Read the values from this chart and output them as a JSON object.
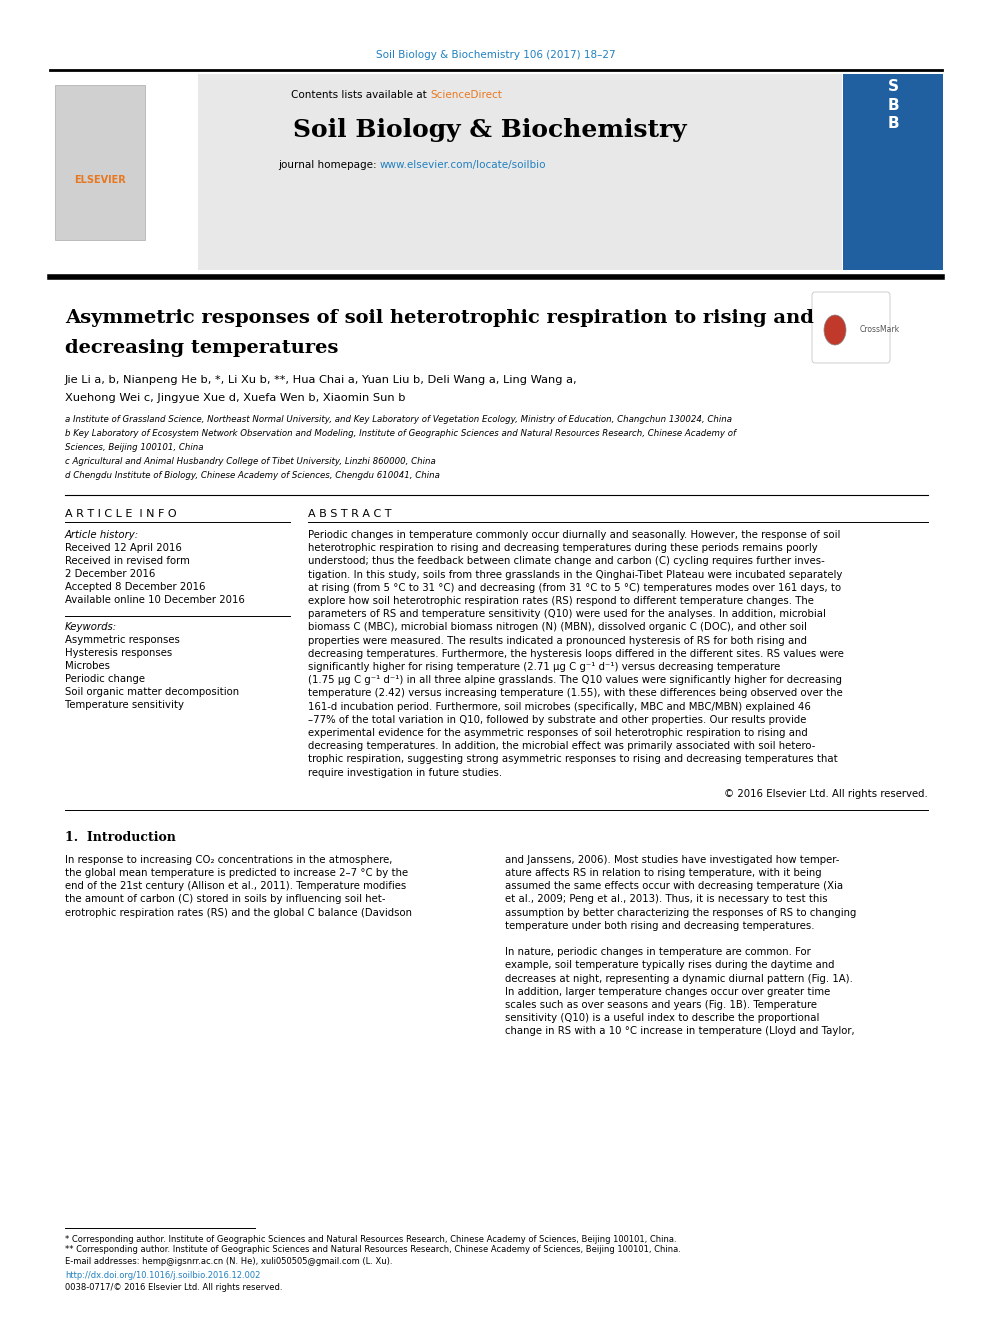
{
  "page_bg": "#ffffff",
  "top_journal_ref": "Soil Biology & Biochemistry 106 (2017) 18–27",
  "top_journal_ref_color": "#2080c0",
  "header_bg": "#e8e8e8",
  "header_text_contents": "Contents lists available at ",
  "header_sciencedirect": "ScienceDirect",
  "header_sciencedirect_color": "#e87820",
  "journal_title": "Soil Biology & Biochemistry",
  "journal_homepage_text": "journal homepage: ",
  "journal_homepage_url": "www.elsevier.com/locate/soilbio",
  "journal_homepage_url_color": "#2080c0",
  "article_title_line1": "Asymmetric responses of soil heterotrophic respiration to rising and",
  "article_title_line2": "decreasing temperatures",
  "authors_line1": "Jie Li a, b, Nianpeng He b, *, Li Xu b, **, Hua Chai a, Yuan Liu b, Deli Wang a, Ling Wang a,",
  "authors_line2": "Xuehong Wei c, Jingyue Xue d, Xuefa Wen b, Xiaomin Sun b",
  "affil_a": "a Institute of Grassland Science, Northeast Normal University, and Key Laboratory of Vegetation Ecology, Ministry of Education, Changchun 130024, China",
  "affil_b_line1": "b Key Laboratory of Ecosystem Network Observation and Modeling, Institute of Geographic Sciences and Natural Resources Research, Chinese Academy of",
  "affil_b_line2": "Sciences, Beijing 100101, China",
  "affil_c": "c Agricultural and Animal Husbandry College of Tibet University, Linzhi 860000, China",
  "affil_d": "d Chengdu Institute of Biology, Chinese Academy of Sciences, Chengdu 610041, China",
  "article_info_title": "A R T I C L E  I N F O",
  "abstract_title": "A B S T R A C T",
  "article_history_label": "Article history:",
  "received_1": "Received 12 April 2016",
  "received_revised": "Received in revised form",
  "received_revised_date": "2 December 2016",
  "accepted": "Accepted 8 December 2016",
  "available_online": "Available online 10 December 2016",
  "keywords_label": "Keywords:",
  "keyword_1": "Asymmetric responses",
  "keyword_2": "Hysteresis responses",
  "keyword_3": "Microbes",
  "keyword_4": "Periodic change",
  "keyword_5": "Soil organic matter decomposition",
  "keyword_6": "Temperature sensitivity",
  "copyright_text": "© 2016 Elsevier Ltd. All rights reserved.",
  "intro_title": "1.  Introduction",
  "footnote_star": "* Corresponding author. Institute of Geographic Sciences and Natural Resources Research, Chinese Academy of Sciences, Beijing 100101, China.",
  "footnote_starstar": "** Corresponding author. Institute of Geographic Sciences and Natural Resources Research, Chinese Academy of Sciences, Beijing 100101, China.",
  "footnote_email": "E-mail addresses: hemp@igsnrr.ac.cn (N. He), xuli050505@gmail.com (L. Xu).",
  "doi_text": "http://dx.doi.org/10.1016/j.soilbio.2016.12.002",
  "issn_text": "0038-0717/© 2016 Elsevier Ltd. All rights reserved.",
  "abstract_lines": [
    "Periodic changes in temperature commonly occur diurnally and seasonally. However, the response of soil",
    "heterotrophic respiration to rising and decreasing temperatures during these periods remains poorly",
    "understood; thus the feedback between climate change and carbon (C) cycling requires further inves-",
    "tigation. In this study, soils from three grasslands in the Qinghai-Tibet Plateau were incubated separately",
    "at rising (from 5 °C to 31 °C) and decreasing (from 31 °C to 5 °C) temperatures modes over 161 days, to",
    "explore how soil heterotrophic respiration rates (RS) respond to different temperature changes. The",
    "parameters of RS and temperature sensitivity (Q10) were used for the analyses. In addition, microbial",
    "biomass C (MBC), microbial biomass nitrogen (N) (MBN), dissolved organic C (DOC), and other soil",
    "properties were measured. The results indicated a pronounced hysteresis of RS for both rising and",
    "decreasing temperatures. Furthermore, the hysteresis loops differed in the different sites. RS values were",
    "significantly higher for rising temperature (2.71 μg C g⁻¹ d⁻¹) versus decreasing temperature",
    "(1.75 μg C g⁻¹ d⁻¹) in all three alpine grasslands. The Q10 values were significantly higher for decreasing",
    "temperature (2.42) versus increasing temperature (1.55), with these differences being observed over the",
    "161-d incubation period. Furthermore, soil microbes (specifically, MBC and MBC/MBN) explained 46",
    "–77% of the total variation in Q10, followed by substrate and other properties. Our results provide",
    "experimental evidence for the asymmetric responses of soil heterotrophic respiration to rising and",
    "decreasing temperatures. In addition, the microbial effect was primarily associated with soil hetero-",
    "trophic respiration, suggesting strong asymmetric responses to rising and decreasing temperatures that",
    "require investigation in future studies."
  ],
  "intro_left_lines": [
    "In response to increasing CO₂ concentrations in the atmosphere,",
    "the global mean temperature is predicted to increase 2–7 °C by the",
    "end of the 21st century (Allison et al., 2011). Temperature modifies",
    "the amount of carbon (C) stored in soils by influencing soil het-",
    "erotrophic respiration rates (RS) and the global C balance (Davidson"
  ],
  "intro_right_lines": [
    "and Janssens, 2006). Most studies have investigated how temper-",
    "ature affects RS in relation to rising temperature, with it being",
    "assumed the same effects occur with decreasing temperature (Xia",
    "et al., 2009; Peng et al., 2013). Thus, it is necessary to test this",
    "assumption by better characterizing the responses of RS to changing",
    "temperature under both rising and decreasing temperatures.",
    "",
    "In nature, periodic changes in temperature are common. For",
    "example, soil temperature typically rises during the daytime and",
    "decreases at night, representing a dynamic diurnal pattern (Fig. 1A).",
    "In addition, larger temperature changes occur over greater time",
    "scales such as over seasons and years (Fig. 1B). Temperature",
    "sensitivity (Q10) is a useful index to describe the proportional",
    "change in RS with a 10 °C increase in temperature (Lloyd and Taylor,"
  ]
}
